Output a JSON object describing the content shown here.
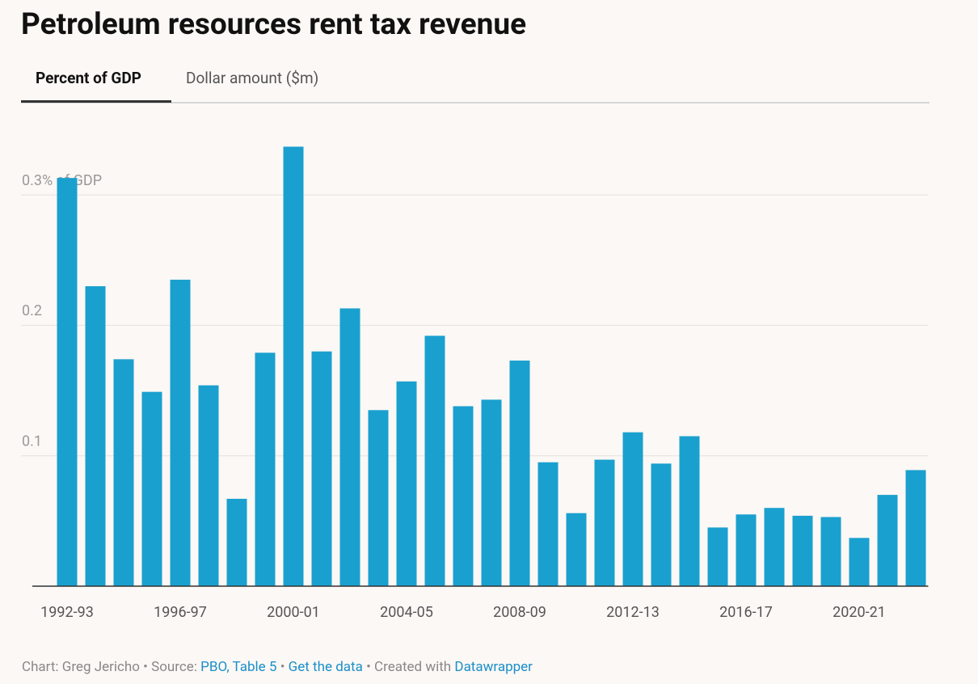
{
  "chart_data": {
    "type": "bar",
    "title": "Petroleum resources rent tax revenue",
    "categories": [
      "1992-93",
      null,
      null,
      null,
      "1996-97",
      null,
      null,
      null,
      "2000-01",
      null,
      null,
      null,
      "2004-05",
      null,
      null,
      null,
      "2008-09",
      null,
      null,
      null,
      "2012-13",
      null,
      null,
      null,
      "2016-17",
      null,
      null,
      null,
      "2020-21",
      null,
      null
    ],
    "values": [
      0.313,
      0.23,
      0.174,
      0.149,
      0.235,
      0.154,
      0.067,
      0.179,
      0.337,
      0.18,
      0.213,
      0.135,
      0.157,
      0.192,
      0.138,
      0.143,
      0.173,
      0.095,
      0.056,
      0.097,
      0.118,
      0.094,
      0.115,
      0.045,
      0.055,
      0.06,
      0.054,
      0.053,
      0.037,
      0.07,
      0.089
    ],
    "color": "#1aa0cf",
    "ylim": [
      0,
      0.34
    ],
    "yticks": [
      0.1,
      0.2,
      {
        "value": 0.3,
        "label": "0.3% of GDP"
      }
    ],
    "grid": true
  },
  "tabs": [
    "Percent of GDP",
    "Dollar amount ($m)"
  ],
  "footer": {
    "credit": "Chart: Greg Jericho",
    "separator": "•",
    "source_label": "Source:",
    "source": "PBO, Table 5",
    "get_data": "Get the data",
    "created_label": "Created with",
    "tool": "Datawrapper"
  }
}
